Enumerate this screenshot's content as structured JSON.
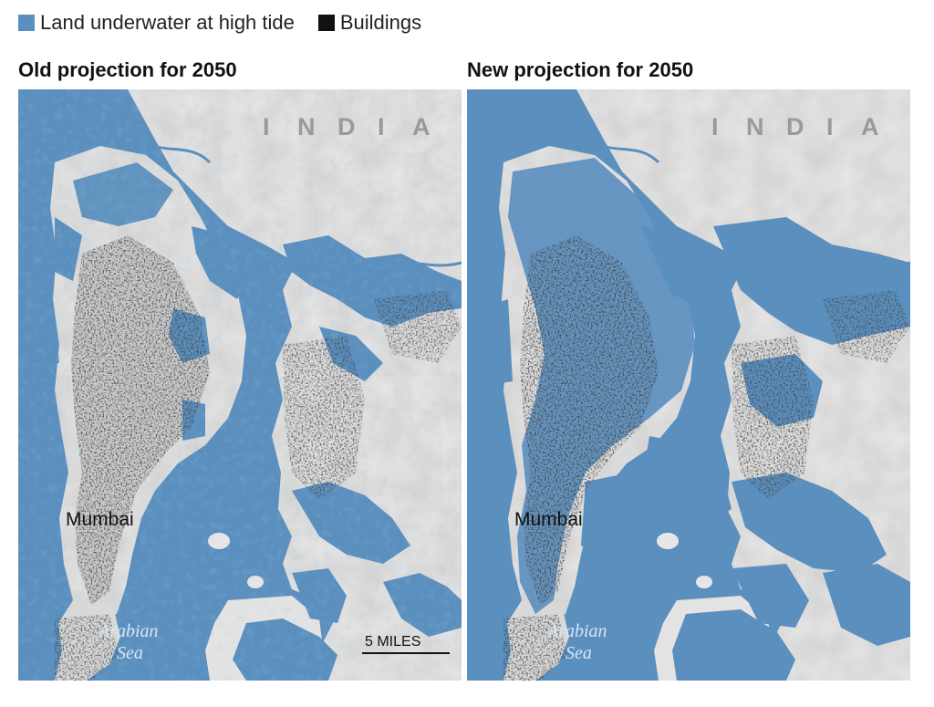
{
  "legend": {
    "water_label": "Land underwater at high tide",
    "water_color": "#5b8fbe",
    "buildings_label": "Buildings",
    "buildings_color": "#111111"
  },
  "panels": [
    {
      "title": "Old projection for 2050",
      "country_label": [
        "I",
        "N",
        "D",
        "I",
        "A"
      ],
      "city_label": "Mumbai",
      "sea_label_line1": "Arabian",
      "sea_label_line2": "Sea",
      "scale_label": "5 MILES"
    },
    {
      "title": "New projection for 2050",
      "country_label": [
        "I",
        "N",
        "D",
        "I",
        "A"
      ],
      "city_label": "Mumbai",
      "sea_label_line1": "Arabian",
      "sea_label_line2": "Sea"
    }
  ],
  "colors": {
    "sea": "#5b8fbe",
    "land": "#e9e9e9",
    "land_shade": "#d6d6d6",
    "urban": "#bdbdbd",
    "flood": "#5b8fbe",
    "buildings": "#111111"
  }
}
